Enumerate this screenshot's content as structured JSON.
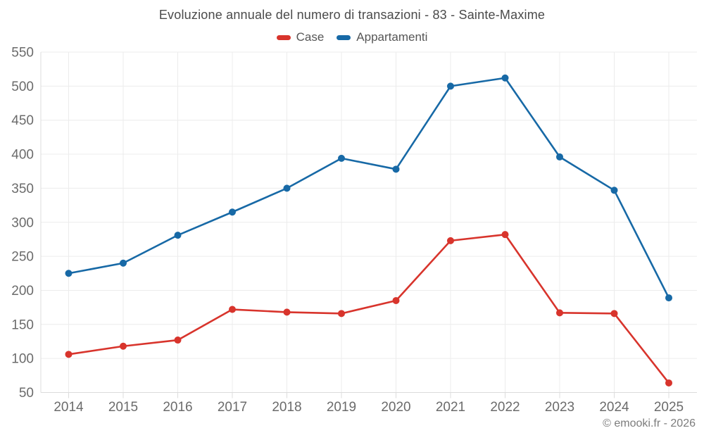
{
  "page": {
    "background": "#ffffff",
    "title_color": "#4a4a4a",
    "axis_label_color": "#6b6b6b",
    "grid_color": "#ececec",
    "axis_line_color": "#dcdcdc",
    "footer_color": "#7c7c7c"
  },
  "footer": {
    "copyright": "© emooki.fr - 2026"
  },
  "chart_data": {
    "type": "line",
    "title": "Evoluzione annuale del numero di transazioni - 83 - Sainte-Maxime",
    "categories": [
      "2014",
      "2015",
      "2016",
      "2017",
      "2018",
      "2019",
      "2020",
      "2021",
      "2022",
      "2023",
      "2024",
      "2025"
    ],
    "series": [
      {
        "name": "Case",
        "color": "#d8342c",
        "values": [
          106,
          118,
          127,
          172,
          168,
          166,
          185,
          273,
          282,
          167,
          166,
          64
        ]
      },
      {
        "name": "Appartamenti",
        "color": "#1769a6",
        "values": [
          225,
          240,
          281,
          315,
          350,
          394,
          378,
          500,
          512,
          396,
          347,
          189
        ]
      }
    ],
    "xlabel": "",
    "ylabel": "",
    "ylim": [
      50,
      550
    ],
    "ytick_step": 50,
    "yticks": [
      50,
      100,
      150,
      200,
      250,
      300,
      350,
      400,
      450,
      500,
      550
    ],
    "grid": true,
    "legend_position": "top",
    "marker": "circle"
  }
}
